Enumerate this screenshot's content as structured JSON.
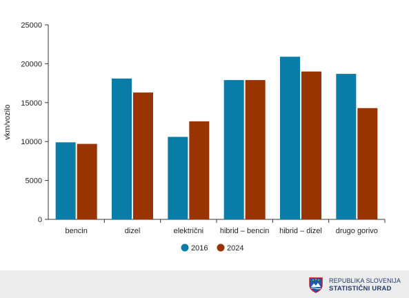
{
  "chart_data": {
    "type": "bar",
    "ylabel": "vkm/vozilo",
    "ylim": [
      0,
      25000
    ],
    "yticks": [
      0,
      5000,
      10000,
      15000,
      20000,
      25000
    ],
    "grid": false,
    "legend_position": "bottom",
    "categories": [
      "bencin",
      "dizel",
      "električni",
      "hibrid – bencin",
      "hibrid – dizel",
      "drugo gorivo"
    ],
    "series": [
      {
        "name": "2016",
        "color": "#0a7ca8",
        "values": [
          9900,
          18100,
          10600,
          17900,
          20900,
          18700
        ]
      },
      {
        "name": "2024",
        "color": "#993300",
        "values": [
          9700,
          16300,
          12600,
          17900,
          19000,
          14300
        ]
      }
    ]
  },
  "footer": {
    "logo_line1": "REPUBLIKA SLOVENIJA",
    "logo_line2": "STATISTIČNI URAD",
    "logo_icon": "slovenia-coat-of-arms-icon"
  }
}
